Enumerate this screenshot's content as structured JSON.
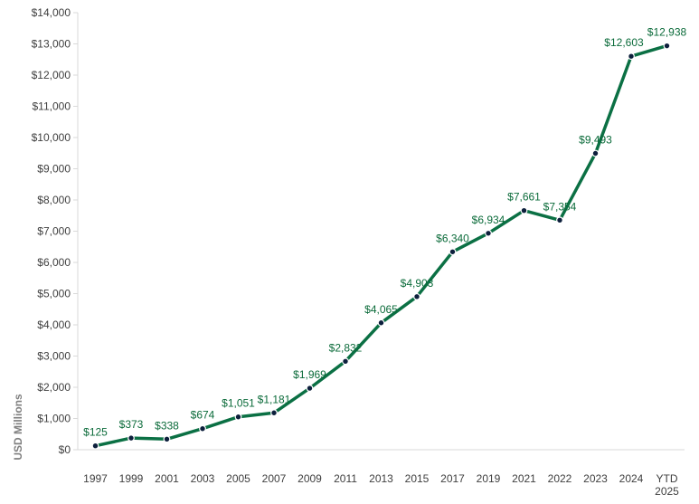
{
  "colors": {
    "line": "#0b7044",
    "marker": "#0d1f3c",
    "data_label": "#0b6b3a",
    "axis": "#d9d9d9",
    "tick_text": "#404040",
    "ylabel_text": "#7f7f7f"
  },
  "chart_data": {
    "type": "line",
    "title": "",
    "xlabel": "",
    "ylabel": "USD Millions",
    "grid": false,
    "legend": "none",
    "ylim": [
      0,
      14000
    ],
    "y_ticks": [
      "$0",
      "$1,000",
      "$2,000",
      "$3,000",
      "$4,000",
      "$5,000",
      "$6,000",
      "$7,000",
      "$8,000",
      "$9,000",
      "$10,000",
      "$11,000",
      "$12,000",
      "$13,000",
      "$14,000"
    ],
    "categories": [
      "1997",
      "1999",
      "2001",
      "2003",
      "2005",
      "2007",
      "2009",
      "2011",
      "2013",
      "2015",
      "2017",
      "2019",
      "2021",
      "2022",
      "2023",
      "2024",
      "YTD 2025"
    ],
    "values": [
      125,
      373,
      338,
      674,
      1051,
      1181,
      1969,
      2832,
      4065,
      4903,
      6340,
      6934,
      7661,
      7354,
      9493,
      12603,
      12938
    ],
    "data_labels": [
      "$125",
      "$373",
      "$338",
      "$674",
      "$1,051",
      "$1,181",
      "$1,969",
      "$2,832",
      "$4,065",
      "$4,903",
      "$6,340",
      "$6,934",
      "$7,661",
      "$7,354",
      "$9,493",
      "$12,603",
      "$12,938"
    ]
  }
}
